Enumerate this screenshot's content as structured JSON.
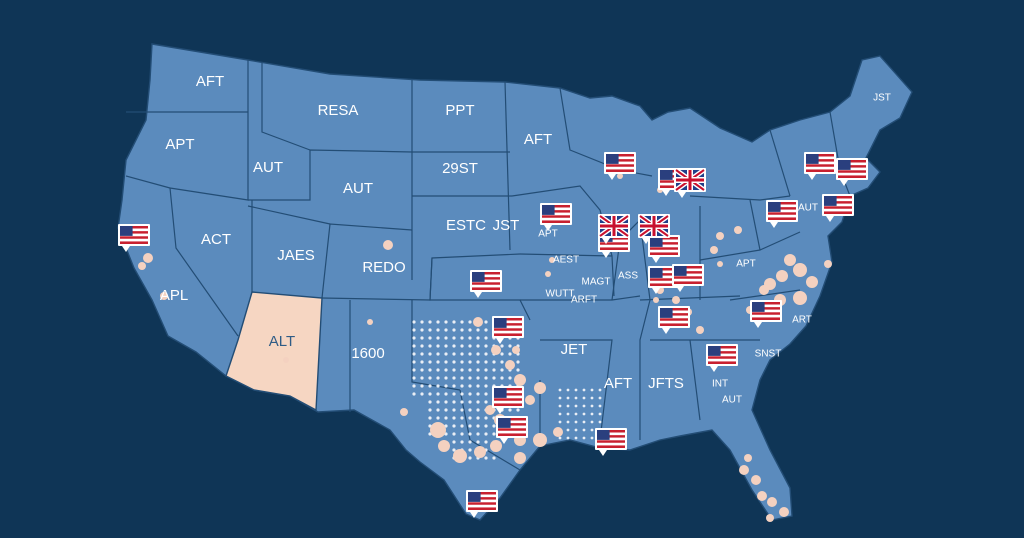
{
  "map": {
    "colors": {
      "ocean": "#0f3556",
      "land": "#5b8bbd",
      "borders": "#234d75",
      "highlight_state": "#f6d6c2",
      "markers": "#f4d1c0"
    },
    "labels": {
      "wa": "AFT",
      "mt": "RESA",
      "nd": "PPT",
      "mn": "AFT",
      "or": "APT",
      "id": "AUT",
      "wy": "AUT",
      "sd": "29ST",
      "nv": "ACT",
      "ut": "JAES",
      "co": "REDO",
      "ne": "ESTC",
      "ia": "JST",
      "ca": "APL",
      "az": "ALT",
      "nm": "1600",
      "ar": "JET",
      "ms": "AFT",
      "al": "JFTS",
      "ga": "INT",
      "ga2": "AUT",
      "sc": "SNST",
      "nc": "ART",
      "va": "APT",
      "pa": "AUT",
      "me": "JST",
      "il1": "AEST",
      "il2": "MAGT",
      "il3": "ASS",
      "mo1": "WUTT",
      "mo2": "ARFT",
      "ky": "APT"
    },
    "flag_icons": "us-flag",
    "accent_flag_icons": "uk-flag"
  }
}
